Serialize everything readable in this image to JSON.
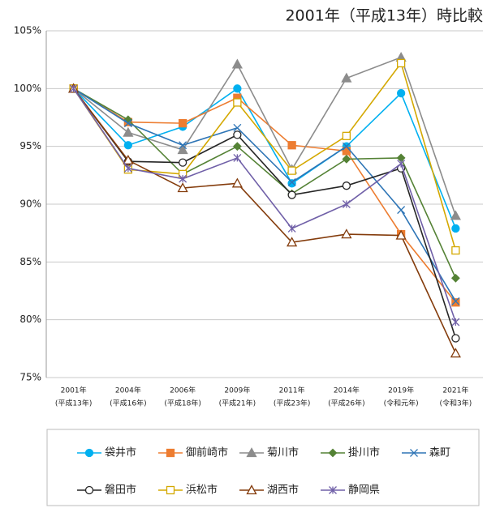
{
  "chart_data": {
    "type": "line",
    "title": "2001年（平成13年）時比較",
    "categories": [
      [
        "2001年",
        "(平成13年)"
      ],
      [
        "2004年",
        "(平成16年)"
      ],
      [
        "2006年",
        "(平成18年)"
      ],
      [
        "2009年",
        "(平成21年)"
      ],
      [
        "2011年",
        "(平成23年)"
      ],
      [
        "2014年",
        "(平成26年)"
      ],
      [
        "2019年",
        "(令和元年)"
      ],
      [
        "2021年",
        "(令和3年)"
      ]
    ],
    "ylim": [
      75,
      105
    ],
    "yticks": [
      {
        "value": 75,
        "label": "75%"
      },
      {
        "value": 80,
        "label": "80%"
      },
      {
        "value": 85,
        "label": "85%"
      },
      {
        "value": 90,
        "label": "90%"
      },
      {
        "value": 95,
        "label": "95%"
      },
      {
        "value": 100,
        "label": "100%"
      },
      {
        "value": 105,
        "label": "105%"
      }
    ],
    "grid": true,
    "legend": "bottom",
    "series": [
      {
        "name": "袋井市",
        "color": "#00b0f0",
        "marker": "circle",
        "values": [
          100,
          95.1,
          96.7,
          100,
          91.8,
          95.0,
          99.6,
          87.9
        ]
      },
      {
        "name": "御前崎市",
        "color": "#ed7d31",
        "marker": "square",
        "values": [
          100,
          97.1,
          97.0,
          99.2,
          95.1,
          94.6,
          87.4,
          81.5
        ]
      },
      {
        "name": "菊川市",
        "color": "#8c8c8c",
        "marker": "triangle",
        "values": [
          100,
          96.2,
          94.7,
          102.1,
          93.0,
          100.9,
          102.7,
          89.0
        ]
      },
      {
        "name": "掛川市",
        "color": "#548235",
        "marker": "diamond",
        "values": [
          100,
          97.3,
          92.6,
          95.0,
          90.9,
          93.9,
          94.0,
          83.6
        ]
      },
      {
        "name": "森町",
        "color": "#2e75b6",
        "marker": "x",
        "values": [
          100,
          97.0,
          95.1,
          96.6,
          91.9,
          95.0,
          89.5,
          81.6
        ]
      },
      {
        "name": "磐田市",
        "color": "#262626",
        "marker": "circle-open",
        "values": [
          100,
          93.7,
          93.6,
          96.0,
          90.8,
          91.6,
          93.1,
          78.4
        ]
      },
      {
        "name": "浜松市",
        "color": "#d4a800",
        "marker": "square-open",
        "values": [
          100,
          93.0,
          92.6,
          98.8,
          92.9,
          95.9,
          102.2,
          86.0
        ]
      },
      {
        "name": "湖西市",
        "color": "#843c0c",
        "marker": "triangle-open",
        "values": [
          100,
          93.8,
          91.4,
          91.8,
          86.7,
          87.4,
          87.3,
          77.1
        ]
      },
      {
        "name": "静岡県",
        "color": "#7060a8",
        "marker": "star",
        "values": [
          100,
          93.1,
          92.2,
          94.0,
          87.9,
          90.0,
          93.5,
          79.8
        ]
      }
    ]
  }
}
